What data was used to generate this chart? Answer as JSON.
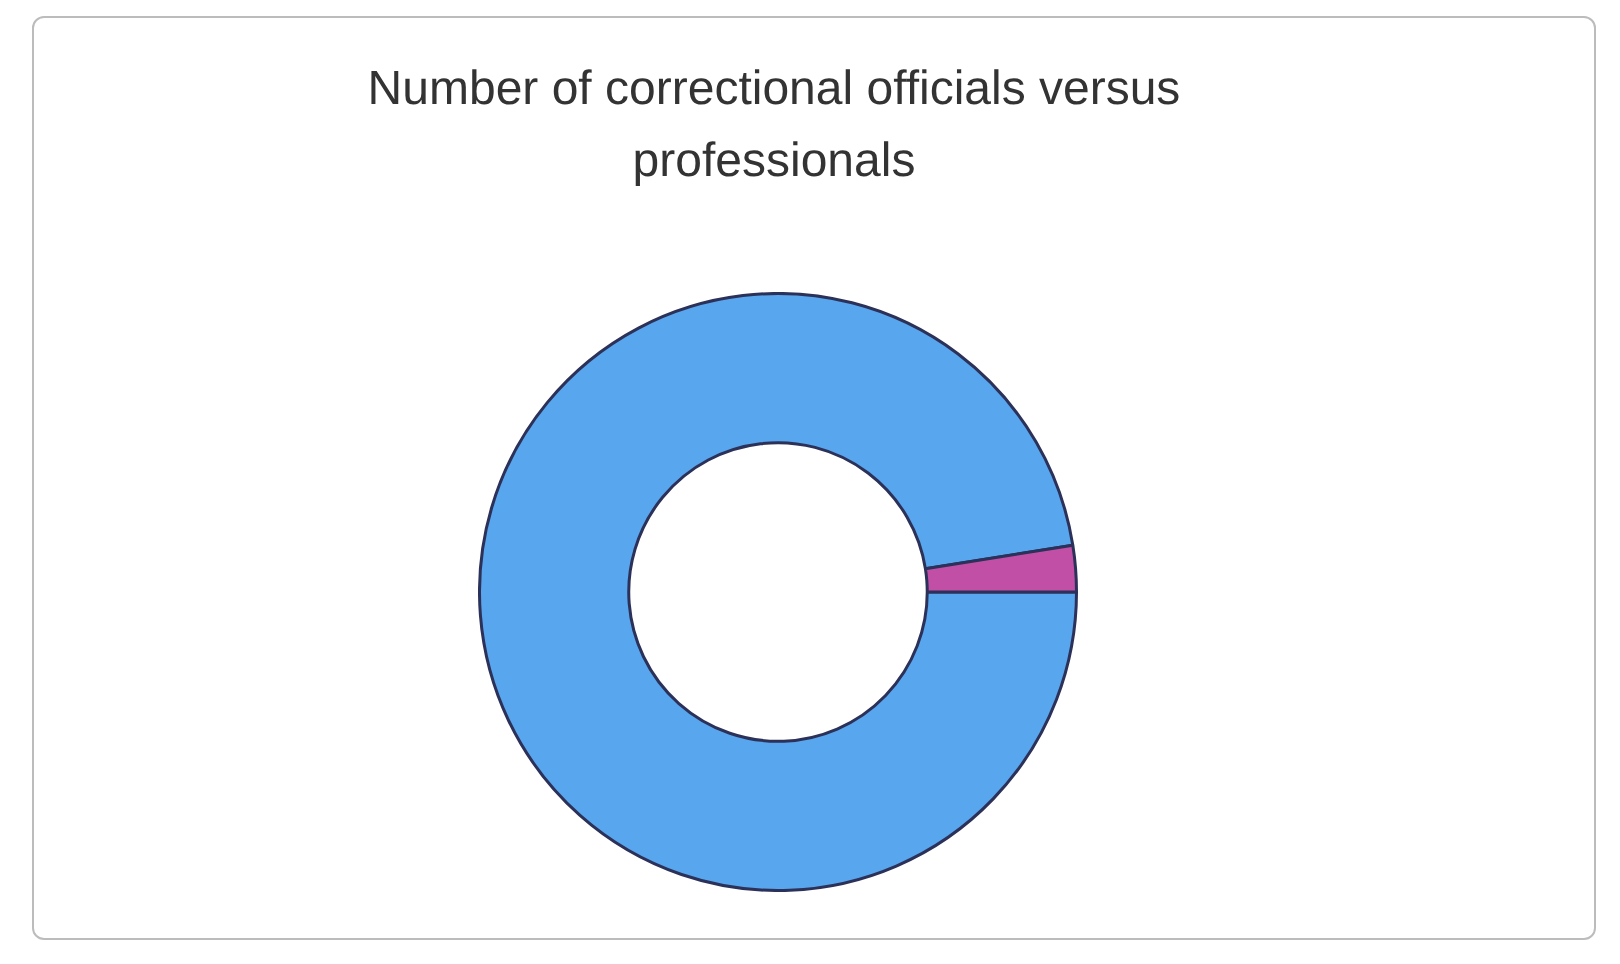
{
  "chart_data": {
    "type": "donut",
    "title": "Number of correctional officials versus professionals",
    "categories": [
      null,
      null
    ],
    "values": [
      97.5,
      2.5
    ],
    "colors": [
      "#58a6ee",
      "#c24fa6"
    ],
    "legend": false
  }
}
